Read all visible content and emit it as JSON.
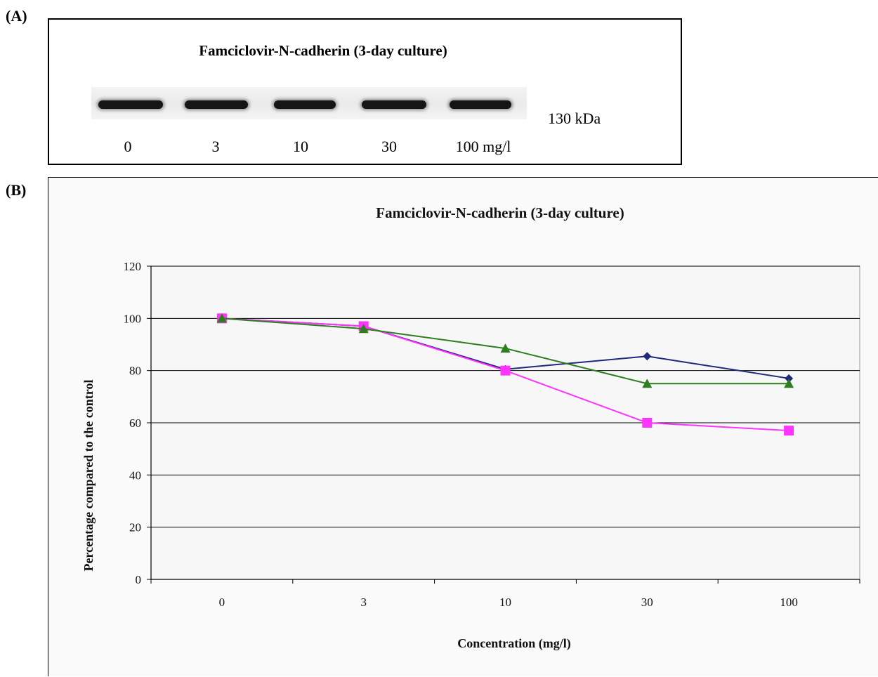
{
  "panel_a": {
    "label": "(A)",
    "title": "Famciclovir-N-cadherin (3-day culture)",
    "marker_label": "130 kDa",
    "lanes": [
      "0",
      "3",
      "10",
      "30",
      "100 mg/l"
    ]
  },
  "panel_b": {
    "label": "(B)"
  },
  "chart_data": {
    "type": "line",
    "title": "Famciclovir-N-cadherin (3-day culture)",
    "xlabel": "Concentration (mg/l)",
    "ylabel": "Percentage compared to the control",
    "categories": [
      "0",
      "3",
      "10",
      "30",
      "100"
    ],
    "yticks": [
      "0",
      "20",
      "40",
      "60",
      "80",
      "100",
      "120"
    ],
    "ylim": [
      0,
      120
    ],
    "grid": true,
    "legend": "none",
    "series": [
      {
        "marker": "diamond",
        "color": "#1f2a7a",
        "values": [
          100,
          97,
          80.5,
          85.5,
          77
        ]
      },
      {
        "marker": "square",
        "color": "#ff33ff",
        "values": [
          100,
          97,
          80,
          60,
          57
        ]
      },
      {
        "marker": "triangle",
        "color": "#2e7d1e",
        "values": [
          100,
          96,
          88.5,
          75,
          75
        ]
      }
    ]
  }
}
